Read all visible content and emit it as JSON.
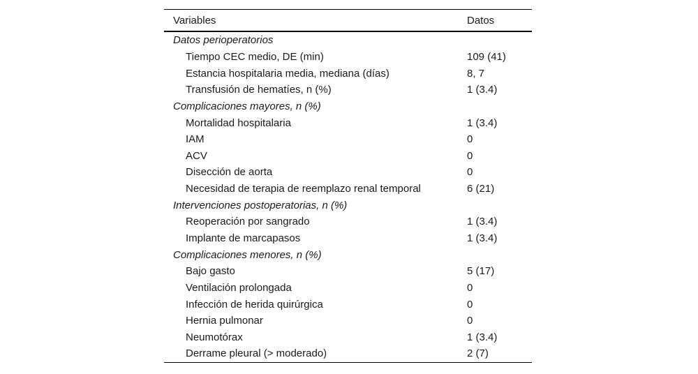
{
  "table": {
    "columns": [
      "Variables",
      "Datos"
    ],
    "sections": [
      {
        "title": "Datos perioperatorios",
        "rows": [
          {
            "label": "Tiempo CEC medio, DE (min)",
            "value": "109 (41)"
          },
          {
            "label": "Estancia hospitalaria media, mediana (días)",
            "value": "8, 7"
          },
          {
            "label": "Transfusión de hematíes, n (%)",
            "value": "1 (3.4)"
          }
        ]
      },
      {
        "title": "Complicaciones mayores, n (%)",
        "rows": [
          {
            "label": "Mortalidad hospitalaria",
            "value": "1 (3.4)"
          },
          {
            "label": "IAM",
            "value": "0"
          },
          {
            "label": "ACV",
            "value": "0"
          },
          {
            "label": "Disección de aorta",
            "value": "0"
          },
          {
            "label": "Necesidad de terapia de reemplazo renal temporal",
            "value": "6 (21)"
          }
        ]
      },
      {
        "title": "Intervenciones postoperatorias, n (%)",
        "rows": [
          {
            "label": "Reoperación por sangrado",
            "value": "1 (3.4)"
          },
          {
            "label": "Implante de marcapasos",
            "value": "1 (3.4)"
          }
        ]
      },
      {
        "title": "Complicaciones menores, n (%)",
        "rows": [
          {
            "label": "Bajo gasto",
            "value": "5 (17)"
          },
          {
            "label": "Ventilación prolongada",
            "value": "0"
          },
          {
            "label": "Infección de herida quirúrgica",
            "value": "0"
          },
          {
            "label": "Hernia pulmonar",
            "value": "0"
          },
          {
            "label": "Neumotórax",
            "value": "1 (3.4)"
          },
          {
            "label": "Derrame pleural (> moderado)",
            "value": "2 (7)"
          }
        ]
      }
    ]
  },
  "colors": {
    "text": "#1a1a1a",
    "rule": "#000000",
    "background": "#ffffff"
  }
}
